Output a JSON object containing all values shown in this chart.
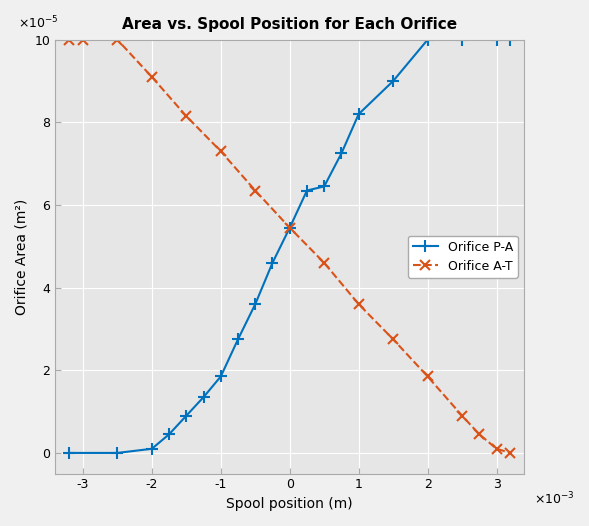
{
  "title": "Area vs. Spool Position for Each Orifice",
  "xlabel": "Spool position (m)",
  "ylabel": "Orifice Area (m²)",
  "xlim": [
    -0.0034,
    0.0034
  ],
  "ylim": [
    -5e-06,
    1.1e-05
  ],
  "PA_x": [
    -0.0032,
    -0.0025,
    -0.002,
    -0.00175,
    -0.0015,
    -0.00125,
    -0.001,
    -0.00075,
    -0.0005,
    -0.00025,
    0.0,
    0.00025,
    0.0005,
    0.00075,
    0.001,
    0.0015,
    0.002,
    0.0025,
    0.003,
    0.0032
  ],
  "PA_y": [
    0.0,
    0.0,
    1e-06,
    4.5e-06,
    9e-06,
    1.35e-05,
    1.85e-05,
    2.75e-05,
    3.6e-05,
    4.6e-05,
    5.45e-05,
    6.35e-05,
    6.45e-05,
    7.25e-05,
    8.2e-05,
    9e-05,
    0.0001,
    0.0001,
    0.0001,
    0.0001
  ],
  "AT_x": [
    -0.0032,
    -0.003,
    -0.0025,
    -0.002,
    -0.0015,
    -0.001,
    -0.0005,
    0.0,
    0.0005,
    0.001,
    0.0015,
    0.002,
    0.0025,
    0.00275,
    0.003,
    0.0032
  ],
  "AT_y": [
    0.0001,
    0.0001,
    0.0001,
    9.1e-05,
    8.15e-05,
    7.3e-05,
    6.35e-05,
    5.45e-05,
    4.6e-05,
    3.6e-05,
    2.75e-05,
    1.85e-05,
    9e-06,
    4.5e-06,
    1e-06,
    0.0
  ],
  "PA_color": "#0072BD",
  "AT_color": "#D95319",
  "PA_label": "Orifice P-A",
  "AT_label": "Orifice A-T",
  "grid_color": "#FFFFFF",
  "bg_color": "#E6E6E6",
  "fig_bg": "#F0F0F0",
  "xticks": [
    -0.003,
    -0.002,
    -0.001,
    0.0,
    0.001,
    0.002,
    0.003
  ],
  "xticklabels": [
    "-3",
    "-2",
    "-1",
    "0",
    "1",
    "2",
    "3"
  ],
  "yticks": [
    0.0,
    2e-05,
    4e-05,
    6e-05,
    8e-05,
    0.0001
  ],
  "yticklabels": [
    "0",
    "2",
    "4",
    "6",
    "8",
    "10"
  ]
}
